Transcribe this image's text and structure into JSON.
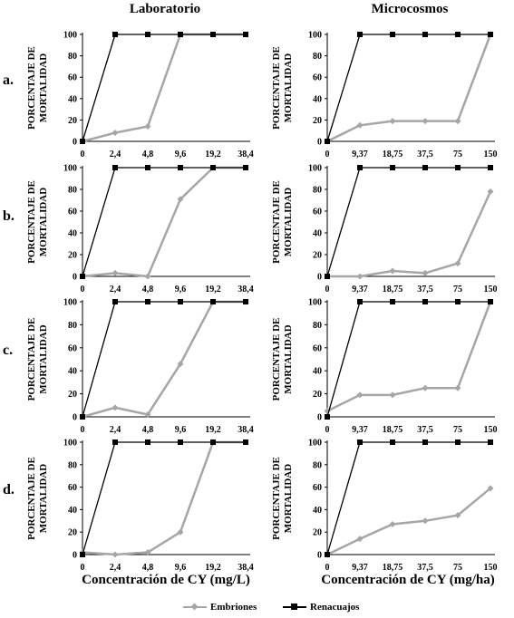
{
  "columns": [
    "Laboratorio",
    "Microcosmos"
  ],
  "rows": [
    "a.",
    "b.",
    "c.",
    "d."
  ],
  "x_titles": [
    "Concentración de CY (mg/L)",
    "Concentración de CY (mg/ha)"
  ],
  "legend": [
    {
      "name": "Embriones",
      "color": "#a6a6a6",
      "marker": "diamond"
    },
    {
      "name": "Renacuajos",
      "color": "#000000",
      "marker": "square"
    }
  ],
  "chart_data": [
    {
      "panel": "a. Laboratorio",
      "type": "line",
      "categories": [
        "0",
        "2,4",
        "4,8",
        "9,6",
        "19,2",
        "38,4"
      ],
      "ylabel": "PORCENTAJE DE MORTALIDAD",
      "ylim": [
        0,
        100
      ],
      "yticks": [
        0,
        20,
        40,
        60,
        80,
        100
      ],
      "series": [
        {
          "name": "Embriones",
          "values": [
            0,
            8,
            14,
            100,
            100,
            100
          ]
        },
        {
          "name": "Renacuajos",
          "values": [
            0,
            100,
            100,
            100,
            100,
            100
          ]
        }
      ]
    },
    {
      "panel": "a. Microcosmos",
      "type": "line",
      "categories": [
        "0",
        "9,37",
        "18,75",
        "37,5",
        "75",
        "150"
      ],
      "ylabel": "PORCENTAJE DE MORTALIDAD",
      "ylim": [
        0,
        100
      ],
      "yticks": [
        0,
        20,
        40,
        60,
        80,
        100
      ],
      "series": [
        {
          "name": "Embriones",
          "values": [
            0,
            15,
            19,
            19,
            19,
            100
          ]
        },
        {
          "name": "Renacuajos",
          "values": [
            0,
            100,
            100,
            100,
            100,
            100
          ]
        }
      ]
    },
    {
      "panel": "b. Laboratorio",
      "type": "line",
      "categories": [
        "0",
        "2,4",
        "4,8",
        "9,6",
        "19,2",
        "38,4"
      ],
      "ylabel": "PORCENTAJE DE MORTALIDAD",
      "ylim": [
        0,
        100
      ],
      "yticks": [
        0,
        20,
        40,
        60,
        80,
        100
      ],
      "series": [
        {
          "name": "Embriones",
          "values": [
            0,
            3,
            0,
            71,
            100,
            100
          ]
        },
        {
          "name": "Renacuajos",
          "values": [
            0,
            100,
            100,
            100,
            100,
            100
          ]
        }
      ]
    },
    {
      "panel": "b. Microcosmos",
      "type": "line",
      "categories": [
        "0",
        "9,37",
        "18,75",
        "37,5",
        "75",
        "150"
      ],
      "ylabel": "PORCENTAJE DE MORTALIDAD",
      "ylim": [
        0,
        100
      ],
      "yticks": [
        0,
        20,
        40,
        60,
        80,
        100
      ],
      "series": [
        {
          "name": "Embriones",
          "values": [
            0,
            0,
            5,
            3,
            12,
            78
          ]
        },
        {
          "name": "Renacuajos",
          "values": [
            0,
            100,
            100,
            100,
            100,
            100
          ]
        }
      ]
    },
    {
      "panel": "c. Laboratorio",
      "type": "line",
      "categories": [
        "0",
        "2,4",
        "4,8",
        "9,6",
        "19,2",
        "38,4"
      ],
      "ylabel": "PORCENTAJE DE MORTALIDAD",
      "ylim": [
        0,
        100
      ],
      "yticks": [
        0,
        20,
        40,
        60,
        80,
        100
      ],
      "series": [
        {
          "name": "Embriones",
          "values": [
            0,
            8,
            2,
            46,
            100,
            100
          ]
        },
        {
          "name": "Renacuajos",
          "values": [
            0,
            100,
            100,
            100,
            100,
            100
          ]
        }
      ]
    },
    {
      "panel": "c. Microcosmos",
      "type": "line",
      "categories": [
        "0",
        "9,37",
        "18,75",
        "37,5",
        "75",
        "150"
      ],
      "ylabel": "PORCENTAJE DE MORTALIDAD",
      "ylim": [
        0,
        100
      ],
      "yticks": [
        0,
        20,
        40,
        60,
        80,
        100
      ],
      "series": [
        {
          "name": "Embriones",
          "values": [
            5,
            19,
            19,
            25,
            25,
            100
          ]
        },
        {
          "name": "Renacuajos",
          "values": [
            0,
            100,
            100,
            100,
            100,
            100
          ]
        }
      ]
    },
    {
      "panel": "d. Laboratorio",
      "type": "line",
      "categories": [
        "0",
        "2,4",
        "4,8",
        "9,6",
        "19,2",
        "38,4"
      ],
      "ylabel": "PORCENTAJE DE MORTALIDAD",
      "ylim": [
        0,
        100
      ],
      "yticks": [
        0,
        20,
        40,
        60,
        80,
        100
      ],
      "series": [
        {
          "name": "Embriones",
          "values": [
            2,
            0,
            2,
            20,
            100,
            100
          ]
        },
        {
          "name": "Renacuajos",
          "values": [
            0,
            100,
            100,
            100,
            100,
            100
          ]
        }
      ]
    },
    {
      "panel": "d. Microcosmos",
      "type": "line",
      "categories": [
        "0",
        "9,37",
        "18,75",
        "37,5",
        "75",
        "150"
      ],
      "ylabel": "PORCENTAJE DE MORTALIDAD",
      "ylim": [
        0,
        100
      ],
      "yticks": [
        0,
        20,
        40,
        60,
        80,
        100
      ],
      "series": [
        {
          "name": "Embriones",
          "values": [
            0,
            14,
            27,
            30,
            35,
            59
          ]
        },
        {
          "name": "Renacuajos",
          "values": [
            0,
            100,
            100,
            100,
            100,
            100
          ]
        }
      ]
    }
  ]
}
